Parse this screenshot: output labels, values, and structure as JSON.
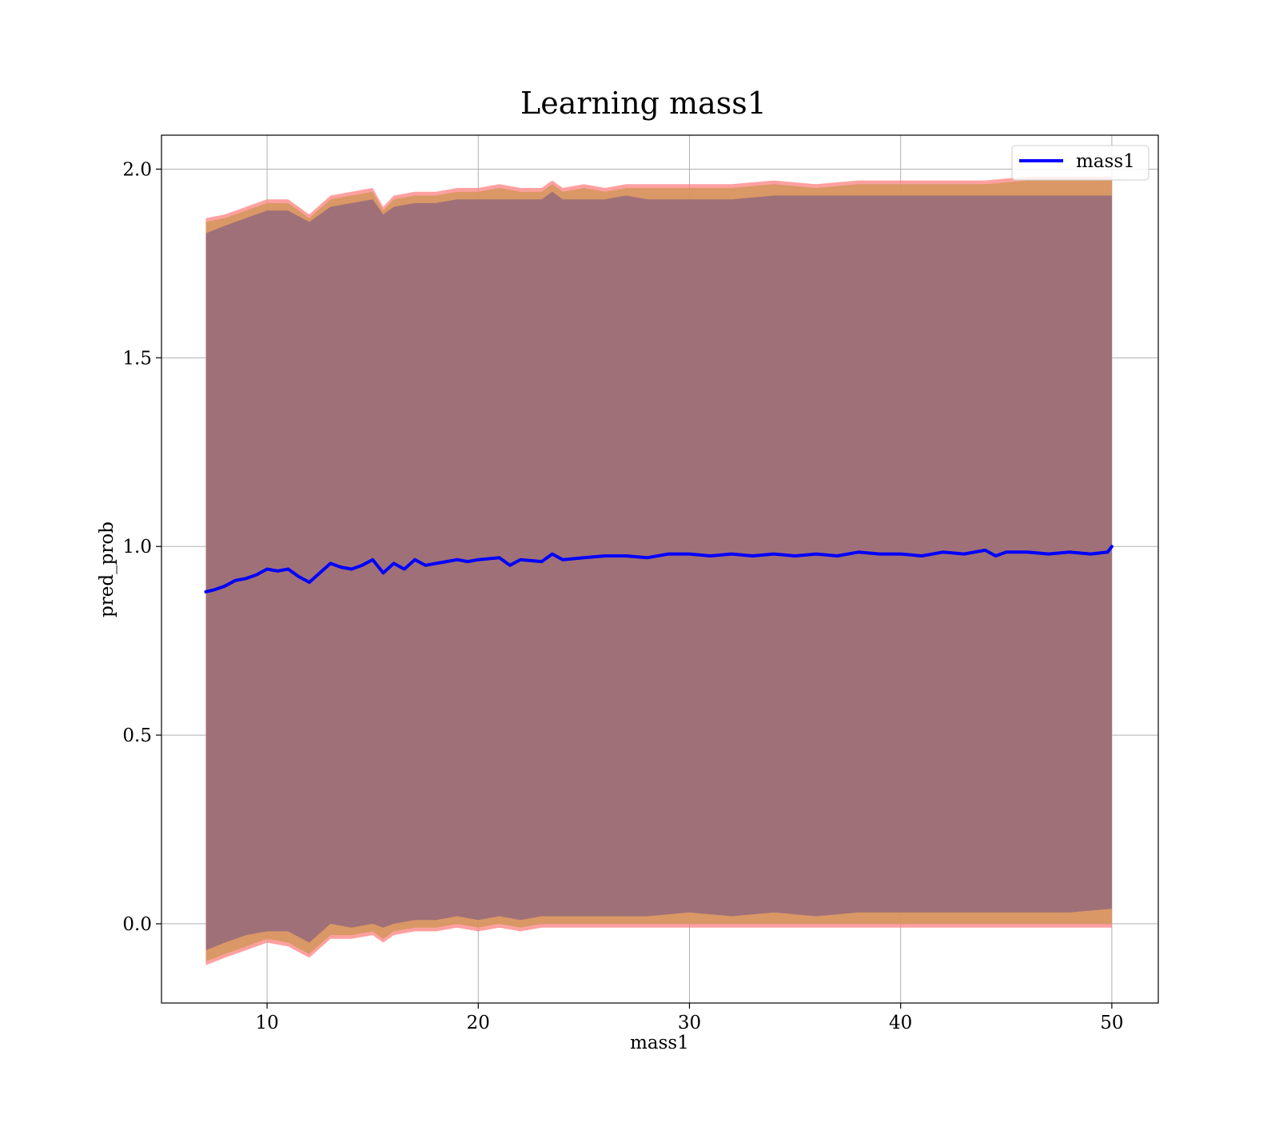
{
  "chart_data": {
    "type": "line",
    "title": "Learning mass1",
    "xlabel": "mass1",
    "ylabel": "pred_prob",
    "xlim": [
      5.0,
      52.2
    ],
    "ylim": [
      -0.21,
      2.09
    ],
    "xticks": [
      10,
      20,
      30,
      40,
      50
    ],
    "xtick_labels": [
      "10",
      "20",
      "30",
      "40",
      "50"
    ],
    "yticks": [
      0.0,
      0.5,
      1.0,
      1.5,
      2.0
    ],
    "ytick_labels": [
      "0.0",
      "0.5",
      "1.0",
      "1.5",
      "2.0"
    ],
    "grid": true,
    "legend": {
      "position": "top-right",
      "entries": [
        {
          "label": "mass1",
          "color": "#0000ff"
        }
      ]
    },
    "series": [
      {
        "name": "mass1",
        "color": "#0000ff",
        "x": [
          7.1,
          7.5,
          8.0,
          8.5,
          9.0,
          9.5,
          10.0,
          10.5,
          11.0,
          11.5,
          12.0,
          12.5,
          13.0,
          13.5,
          14.0,
          14.5,
          15.0,
          15.5,
          16.0,
          16.5,
          17.0,
          17.5,
          18.0,
          18.5,
          19.0,
          19.5,
          20.0,
          21.0,
          21.5,
          22.0,
          23.0,
          23.5,
          24.0,
          25.0,
          26.0,
          27.0,
          28.0,
          29.0,
          30.0,
          31.0,
          32.0,
          33.0,
          34.0,
          35.0,
          36.0,
          37.0,
          38.0,
          39.0,
          40.0,
          41.0,
          42.0,
          43.0,
          44.0,
          44.5,
          45.0,
          46.0,
          47.0,
          48.0,
          49.0,
          49.8,
          50.0
        ],
        "y": [
          0.88,
          0.885,
          0.895,
          0.91,
          0.915,
          0.925,
          0.94,
          0.935,
          0.94,
          0.92,
          0.905,
          0.93,
          0.955,
          0.945,
          0.94,
          0.95,
          0.965,
          0.93,
          0.955,
          0.94,
          0.965,
          0.95,
          0.955,
          0.96,
          0.965,
          0.96,
          0.965,
          0.97,
          0.95,
          0.965,
          0.96,
          0.98,
          0.965,
          0.97,
          0.975,
          0.975,
          0.97,
          0.98,
          0.98,
          0.975,
          0.98,
          0.975,
          0.98,
          0.975,
          0.98,
          0.975,
          0.985,
          0.98,
          0.98,
          0.975,
          0.985,
          0.98,
          0.99,
          0.975,
          0.985,
          0.985,
          0.98,
          0.985,
          0.98,
          0.985,
          1.0
        ]
      }
    ],
    "bands": [
      {
        "color": "#ff8080",
        "opacity": 0.75,
        "x": [
          7.1,
          8.0,
          9.0,
          10.0,
          11.0,
          12.0,
          13.0,
          14.0,
          15.0,
          15.5,
          16.0,
          17.0,
          18.0,
          19.0,
          20.0,
          21.0,
          22.0,
          23.0,
          23.5,
          24.0,
          25.0,
          26.0,
          27.0,
          28.0,
          30.0,
          32.0,
          34.0,
          36.0,
          38.0,
          40.0,
          42.0,
          44.0,
          46.0,
          48.0,
          50.0
        ],
        "upper": [
          1.87,
          1.88,
          1.9,
          1.92,
          1.92,
          1.88,
          1.93,
          1.94,
          1.95,
          1.9,
          1.93,
          1.94,
          1.94,
          1.95,
          1.95,
          1.96,
          1.95,
          1.95,
          1.97,
          1.95,
          1.96,
          1.95,
          1.96,
          1.96,
          1.96,
          1.96,
          1.97,
          1.96,
          1.97,
          1.97,
          1.97,
          1.97,
          1.98,
          1.98,
          1.98
        ],
        "lower": [
          -0.11,
          -0.09,
          -0.07,
          -0.05,
          -0.06,
          -0.09,
          -0.04,
          -0.04,
          -0.03,
          -0.05,
          -0.03,
          -0.02,
          -0.02,
          -0.01,
          -0.02,
          -0.01,
          -0.02,
          -0.01,
          -0.01,
          -0.01,
          -0.01,
          -0.01,
          -0.01,
          -0.01,
          -0.01,
          -0.01,
          -0.01,
          -0.01,
          -0.01,
          -0.01,
          -0.01,
          -0.01,
          -0.01,
          -0.01,
          -0.01
        ]
      },
      {
        "color": "#d2965a",
        "opacity": 0.85,
        "x": [
          7.1,
          8.0,
          9.0,
          10.0,
          11.0,
          12.0,
          13.0,
          14.0,
          15.0,
          15.5,
          16.0,
          17.0,
          18.0,
          19.0,
          20.0,
          21.0,
          22.0,
          23.0,
          23.5,
          24.0,
          25.0,
          26.0,
          27.0,
          28.0,
          30.0,
          32.0,
          34.0,
          36.0,
          38.0,
          40.0,
          42.0,
          44.0,
          46.0,
          48.0,
          50.0
        ],
        "upper": [
          1.86,
          1.87,
          1.89,
          1.91,
          1.91,
          1.87,
          1.92,
          1.93,
          1.94,
          1.89,
          1.92,
          1.93,
          1.93,
          1.94,
          1.94,
          1.95,
          1.94,
          1.94,
          1.96,
          1.94,
          1.95,
          1.94,
          1.95,
          1.95,
          1.95,
          1.95,
          1.96,
          1.95,
          1.96,
          1.96,
          1.96,
          1.96,
          1.97,
          1.97,
          1.97
        ],
        "lower": [
          -0.1,
          -0.08,
          -0.06,
          -0.04,
          -0.05,
          -0.08,
          -0.03,
          -0.03,
          -0.02,
          -0.04,
          -0.02,
          -0.01,
          -0.01,
          0.0,
          -0.01,
          0.0,
          -0.01,
          0.0,
          0.0,
          0.0,
          0.0,
          0.0,
          0.0,
          0.0,
          0.0,
          0.0,
          0.0,
          0.0,
          0.0,
          0.0,
          0.0,
          0.0,
          0.0,
          0.0,
          0.0
        ]
      },
      {
        "color": "#a07078",
        "opacity": 1.0,
        "x": [
          7.1,
          8.0,
          9.0,
          10.0,
          11.0,
          12.0,
          13.0,
          14.0,
          15.0,
          15.5,
          16.0,
          17.0,
          18.0,
          19.0,
          20.0,
          21.0,
          22.0,
          23.0,
          23.5,
          24.0,
          25.0,
          26.0,
          27.0,
          28.0,
          30.0,
          32.0,
          34.0,
          36.0,
          38.0,
          40.0,
          42.0,
          44.0,
          46.0,
          48.0,
          50.0
        ],
        "upper": [
          1.83,
          1.85,
          1.87,
          1.89,
          1.89,
          1.86,
          1.9,
          1.91,
          1.92,
          1.88,
          1.9,
          1.91,
          1.91,
          1.92,
          1.92,
          1.92,
          1.92,
          1.92,
          1.94,
          1.92,
          1.92,
          1.92,
          1.93,
          1.92,
          1.92,
          1.92,
          1.93,
          1.93,
          1.93,
          1.93,
          1.93,
          1.93,
          1.93,
          1.93,
          1.93
        ],
        "lower": [
          -0.07,
          -0.05,
          -0.03,
          -0.02,
          -0.02,
          -0.05,
          0.0,
          -0.01,
          0.0,
          -0.01,
          0.0,
          0.01,
          0.01,
          0.02,
          0.01,
          0.02,
          0.01,
          0.02,
          0.02,
          0.02,
          0.02,
          0.02,
          0.02,
          0.02,
          0.03,
          0.02,
          0.03,
          0.02,
          0.03,
          0.03,
          0.03,
          0.03,
          0.03,
          0.03,
          0.04
        ]
      }
    ]
  }
}
